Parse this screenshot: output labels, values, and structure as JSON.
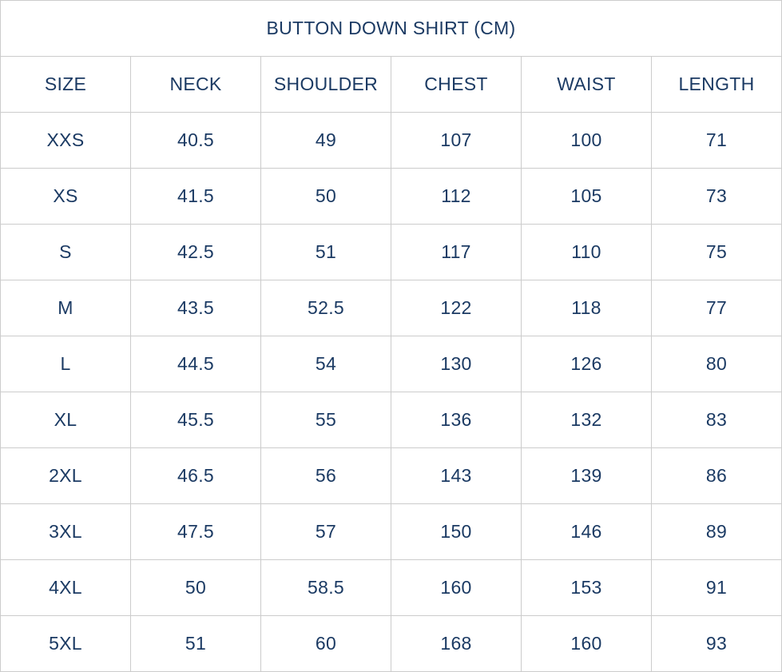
{
  "title": "BUTTON DOWN SHIRT (CM)",
  "units": "cm",
  "colors": {
    "text": "#1b3a63",
    "border": "#cccccc",
    "background": "#ffffff"
  },
  "chart_data": {
    "type": "table",
    "title": "BUTTON DOWN SHIRT (CM)",
    "columns": [
      "SIZE",
      "NECK",
      "SHOULDER",
      "CHEST",
      "WAIST",
      "LENGTH"
    ],
    "rows": [
      [
        "XXS",
        "40.5",
        "49",
        "107",
        "100",
        "71"
      ],
      [
        "XS",
        "41.5",
        "50",
        "112",
        "105",
        "73"
      ],
      [
        "S",
        "42.5",
        "51",
        "117",
        "110",
        "75"
      ],
      [
        "M",
        "43.5",
        "52.5",
        "122",
        "118",
        "77"
      ],
      [
        "L",
        "44.5",
        "54",
        "130",
        "126",
        "80"
      ],
      [
        "XL",
        "45.5",
        "55",
        "136",
        "132",
        "83"
      ],
      [
        "2XL",
        "46.5",
        "56",
        "143",
        "139",
        "86"
      ],
      [
        "3XL",
        "47.5",
        "57",
        "150",
        "146",
        "89"
      ],
      [
        "4XL",
        "50",
        "58.5",
        "160",
        "153",
        "91"
      ],
      [
        "5XL",
        "51",
        "60",
        "168",
        "160",
        "93"
      ]
    ]
  }
}
